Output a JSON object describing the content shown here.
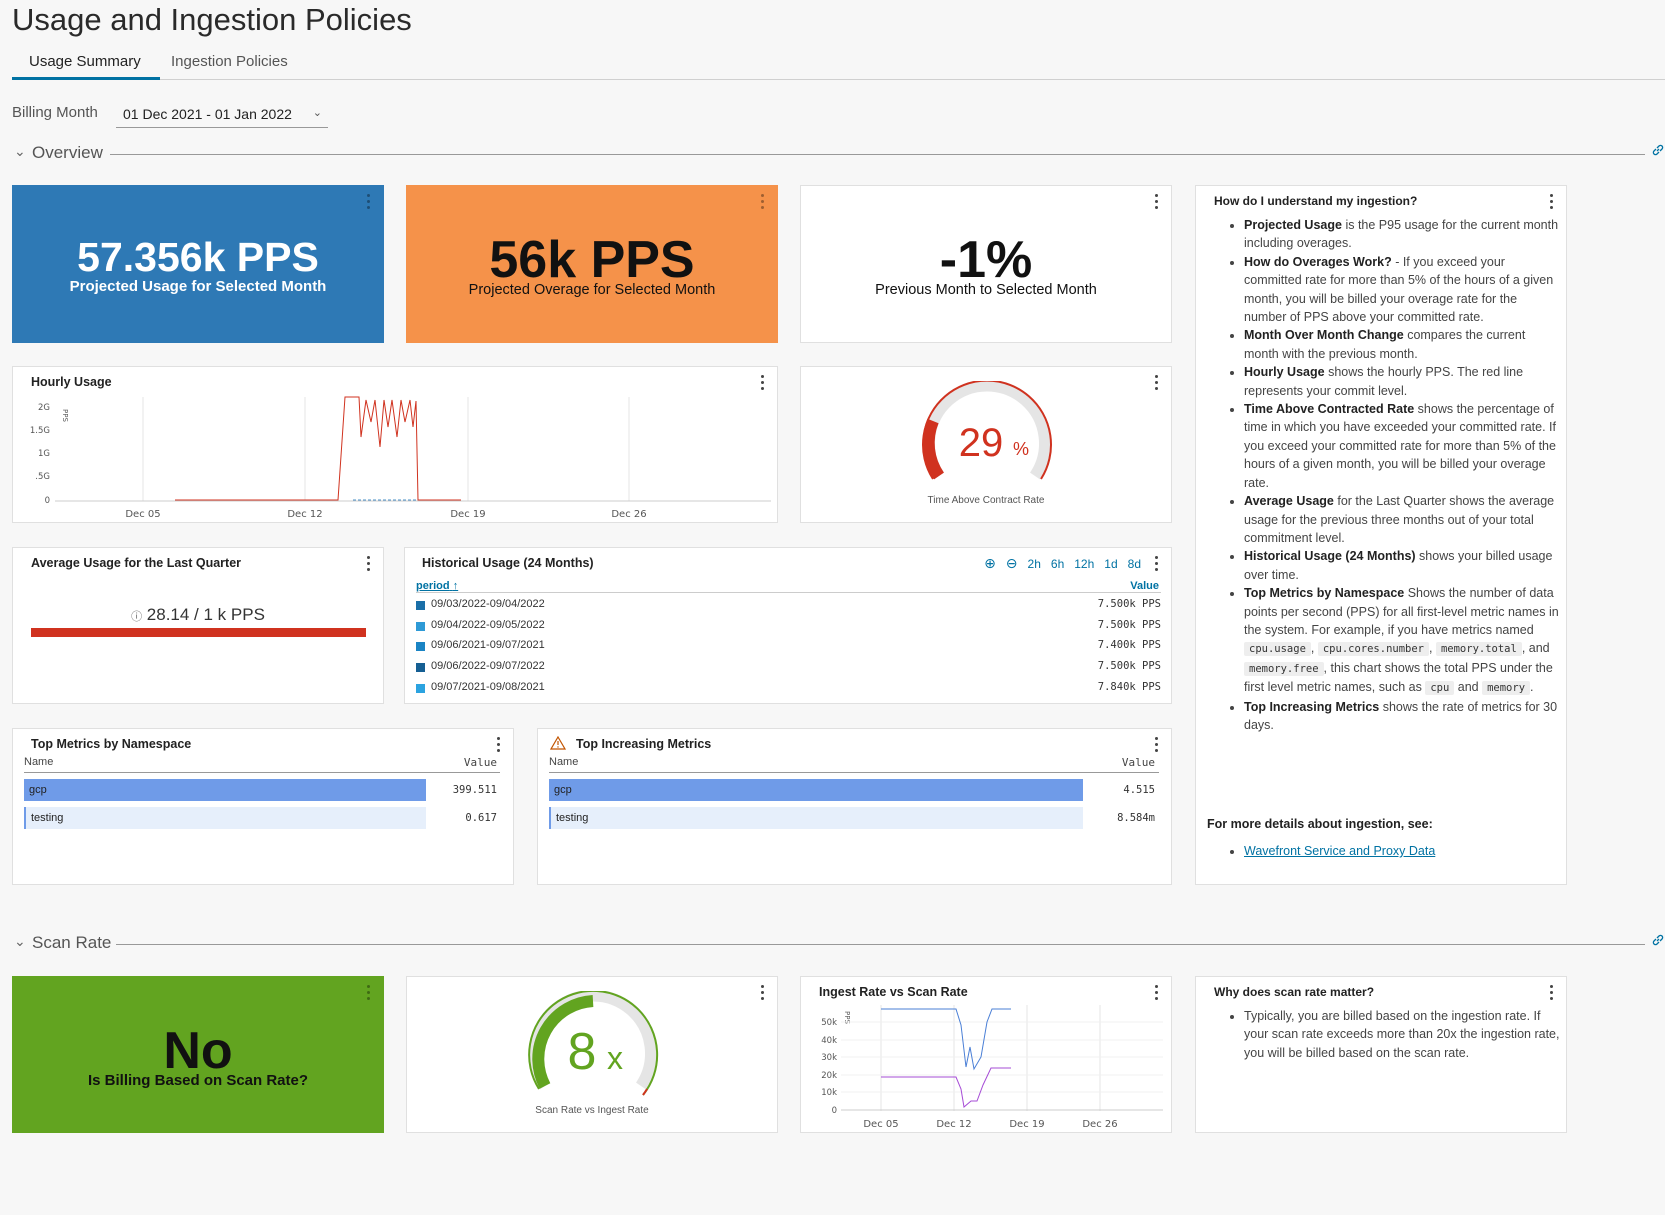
{
  "page": {
    "title": "Usage and Ingestion Policies"
  },
  "tabs": [
    {
      "label": "Usage Summary",
      "active": true
    },
    {
      "label": "Ingestion Policies",
      "active": false
    }
  ],
  "billing": {
    "label": "Billing Month",
    "value": "01 Dec 2021 - 01 Jan 2022"
  },
  "sections": {
    "overview": "Overview",
    "scan_rate": "Scan Rate"
  },
  "projected_usage": {
    "value": "57.356k PPS",
    "label": "Projected Usage for Selected Month",
    "color": "#2e79b5"
  },
  "projected_overage": {
    "value": "56k PPS",
    "label": "Projected Overage for Selected Month",
    "color": "#f5924a"
  },
  "month_change": {
    "value": "-1%",
    "label": "Previous Month to Selected Month"
  },
  "hourly_usage": {
    "title": "Hourly Usage",
    "unit": "PPS",
    "y_ticks": [
      "2G",
      "1.5G",
      "1G",
      ".5G",
      "0"
    ],
    "x_ticks": [
      "Dec 05",
      "Dec 12",
      "Dec 19",
      "Dec 26"
    ]
  },
  "time_above": {
    "value": "29",
    "unit": "%",
    "label": "Time Above Contract Rate",
    "color": "#d0321f"
  },
  "avg_quarter": {
    "title": "Average Usage for the Last Quarter",
    "value": "28.14 / 1 k PPS",
    "bar_color": "#d0321f"
  },
  "historical": {
    "title": "Historical Usage (24 Months)",
    "controls": [
      "2h",
      "6h",
      "12h",
      "1d",
      "8d"
    ],
    "col_period": "period",
    "col_value": "Value",
    "rows": [
      {
        "period": "09/03/2022-09/04/2022",
        "value": "7.500k PPS"
      },
      {
        "period": "09/04/2022-09/05/2022",
        "value": "7.500k PPS"
      },
      {
        "period": "09/06/2021-09/07/2021",
        "value": "7.400k PPS"
      },
      {
        "period": "09/06/2022-09/07/2022",
        "value": "7.500k PPS"
      },
      {
        "period": "09/07/2021-09/08/2021",
        "value": "7.840k PPS"
      }
    ]
  },
  "top_namespace": {
    "title": "Top Metrics by Namespace",
    "col_name": "Name",
    "col_value": "Value",
    "rows": [
      {
        "name": "gcp",
        "value": "399.511",
        "ratio": 1.0
      },
      {
        "name": "testing",
        "value": "0.617",
        "ratio": 1.0
      }
    ]
  },
  "top_increasing": {
    "title": "Top Increasing Metrics",
    "col_name": "Name",
    "col_value": "Value",
    "rows": [
      {
        "name": "gcp",
        "value": "4.515"
      },
      {
        "name": "testing",
        "value": "8.584m"
      }
    ]
  },
  "help": {
    "title": "How do I understand my ingestion?",
    "items": [
      {
        "term": "Projected Usage",
        "text": " is the P95 usage for the current month including overages."
      },
      {
        "term": "How do Overages Work?",
        "text": " - If you exceed your committed rate for more than 5% of the hours of a given month, you will be billed your overage rate for the number of PPS above your committed rate."
      },
      {
        "term": "Month Over Month Change",
        "text": " compares the current month with the previous month."
      },
      {
        "term": "Hourly Usage",
        "text": " shows the hourly PPS. The red line represents your commit level."
      },
      {
        "term": "Time Above Contracted Rate",
        "text": " shows the percentage of time in which you have exceeded your committed rate. If you exceed your committed rate for more than 5% of the hours of a given month, you will be billed your overage rate."
      },
      {
        "term": "Average Usage",
        "text": " for the Last Quarter shows the average usage for the previous three months out of your total commitment level."
      },
      {
        "term": "Historical Usage (24 Months)",
        "text": " shows your billed usage over time."
      }
    ],
    "top_ns_term": "Top Metrics by Namespace",
    "top_ns_text1": " Shows the number of data points per second (PPS) for all first-level metric names in the system. For example, if you have metrics named ",
    "code1": "cpu.usage",
    "sep1": ", ",
    "code2": "cpu.cores.number",
    "sep2": ", ",
    "code3": "memory.total",
    "sep3": ", and ",
    "code4": "memory.free",
    "top_ns_text2": ", this chart shows the total PPS under the first level metric names, such as ",
    "code5": "cpu",
    "sep4": " and ",
    "code6": "memory",
    "sep5": ".",
    "last_term": "Top Increasing Metrics",
    "last_text": " shows the rate of metrics for 30 days.",
    "more_details": "For more details about ingestion, see:",
    "link": "Wavefront Service and Proxy Data"
  },
  "scan_billing": {
    "value": "No",
    "label": "Is Billing Based on Scan Rate?",
    "color": "#62a420"
  },
  "scan_gauge": {
    "value": "8",
    "unit": "x",
    "label": "Scan Rate vs Ingest Rate",
    "color": "#62a420"
  },
  "ingest_vs_scan": {
    "title": "Ingest Rate vs Scan Rate",
    "unit": "PPS",
    "y_ticks": [
      "50k",
      "40k",
      "30k",
      "20k",
      "10k",
      "0"
    ],
    "x_ticks": [
      "Dec 05",
      "Dec 12",
      "Dec 19",
      "Dec 26"
    ]
  },
  "scan_help": {
    "title": "Why does scan rate matter?",
    "text": "Typically, you are billed based on the ingestion rate. If your scan rate exceeds more than 20x the ingestion rate, you will be billed based on the scan rate."
  }
}
